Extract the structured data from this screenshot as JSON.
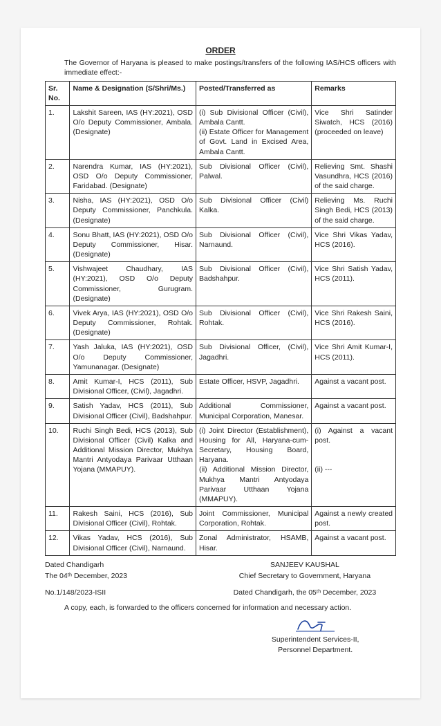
{
  "title": "ORDER",
  "intro": "The Governor of Haryana is pleased to make postings/transfers of the following IAS/HCS officers with immediate effect:-",
  "headers": {
    "sr": "Sr. No.",
    "name": "Name & Designation (S/Shri/Ms.)",
    "posted": "Posted/Transferred as",
    "remarks": "Remarks"
  },
  "rows": [
    {
      "sr": "1.",
      "name": "Lakshit Sareen, IAS (HY:2021), OSD O/o Deputy Commissioner, Ambala. (Designate)",
      "posted": "(i) Sub Divisional Officer (Civil), Ambala Cantt.\n(ii) Estate Officer for Management of Govt. Land in Excised Area, Ambala Cantt.",
      "remarks": "Vice Shri Satinder Siwatch, HCS (2016) (proceeded on leave)"
    },
    {
      "sr": "2.",
      "name": "Narendra Kumar, IAS (HY:2021), OSD O/o Deputy Commissioner, Faridabad. (Designate)",
      "posted": "Sub Divisional Officer (Civil), Palwal.",
      "remarks": "Relieving Smt. Shashi Vasundhra, HCS (2016) of the said charge."
    },
    {
      "sr": "3.",
      "name": "Nisha, IAS (HY:2021), OSD O/o Deputy Commissioner, Panchkula. (Designate)",
      "posted": "Sub Divisional Officer (Civil) Kalka.",
      "remarks": "Relieving Ms. Ruchi Singh Bedi, HCS (2013) of the said charge."
    },
    {
      "sr": "4.",
      "name": "Sonu Bhatt, IAS (HY:2021), OSD O/o Deputy Commissioner, Hisar. (Designate)",
      "posted": "Sub Divisional Officer (Civil), Narnaund.",
      "remarks": "Vice Shri Vikas Yadav, HCS (2016)."
    },
    {
      "sr": "5.",
      "name": "Vishwajeet Chaudhary, IAS (HY:2021), OSD O/o Deputy Commissioner, Gurugram. (Designate)",
      "posted": "Sub Divisional Officer (Civil), Badshahpur.",
      "remarks": "Vice Shri Satish Yadav, HCS (2011)."
    },
    {
      "sr": "6.",
      "name": "Vivek Arya, IAS (HY:2021), OSD O/o Deputy Commissioner, Rohtak. (Designate)",
      "posted": "Sub Divisional Officer (Civil), Rohtak.",
      "remarks": "Vice Shri Rakesh Saini, HCS (2016)."
    },
    {
      "sr": "7.",
      "name": "Yash Jaluka, IAS (HY:2021), OSD O/o Deputy Commissioner, Yamunanagar. (Designate)",
      "posted": "Sub Divisional Officer, (Civil), Jagadhri.",
      "remarks": "Vice Shri Amit Kumar-I, HCS (2011)."
    },
    {
      "sr": "8.",
      "name": "Amit Kumar-I, HCS (2011), Sub Divisional Officer, (Civil), Jagadhri.",
      "posted": "Estate Officer, HSVP, Jagadhri.",
      "remarks": "Against a vacant post."
    },
    {
      "sr": "9.",
      "name": "Satish Yadav, HCS (2011), Sub Divisional Officer (Civil), Badshahpur.",
      "posted": "Additional Commissioner, Municipal Corporation, Manesar.",
      "remarks": "Against a vacant post."
    },
    {
      "sr": "10.",
      "name": "Ruchi Singh Bedi, HCS (2013), Sub Divisional Officer (Civil) Kalka and Additional Mission Director, Mukhya Mantri Antyodaya Parivaar Utthaan Yojana (MMAPUY).",
      "posted": "(i) Joint Director (Establishment), Housing for All, Haryana-cum-Secretary, Housing Board, Haryana.\n(ii) Additional Mission Director, Mukhya Mantri Antyodaya Parivaar Utthaan Yojana (MMAPUY).",
      "remarks": "(i) Against a vacant post.\n\n\n(ii) ---"
    },
    {
      "sr": "11.",
      "name": "Rakesh Saini, HCS (2016), Sub Divisional Officer (Civil), Rohtak.",
      "posted": "Joint Commissioner, Municipal Corporation, Rohtak.",
      "remarks": "Against a newly created post."
    },
    {
      "sr": "12.",
      "name": "Vikas Yadav, HCS (2016), Sub Divisional Officer (Civil), Narnaund.",
      "posted": "Zonal Administrator, HSAMB, Hisar.",
      "remarks": "Against a vacant post."
    }
  ],
  "footer": {
    "dated_place": "Dated Chandigarh",
    "dated_date": "The 04ᵗʰ December, 2023",
    "ref_no": "No.1/148/2023-ISII",
    "signatory_name": "SANJEEV KAUSHAL",
    "signatory_title": "Chief Secretary to Government, Haryana",
    "dated_place2": "Dated Chandigarh, the 05ᵗʰ December, 2023",
    "cc_text": "A copy, each, is forwarded to the officers concerned for information and necessary action.",
    "sign_title1": "Superintendent Services-II,",
    "sign_title2": "Personnel Department."
  }
}
